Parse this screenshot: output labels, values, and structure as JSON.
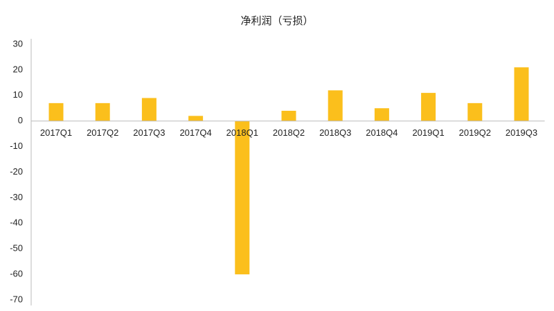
{
  "chart_data": {
    "type": "bar",
    "title": "净利润（亏损）",
    "categories": [
      "2017Q1",
      "2017Q2",
      "2017Q3",
      "2017Q4",
      "2018Q1",
      "2018Q2",
      "2018Q3",
      "2018Q4",
      "2019Q1",
      "2019Q2",
      "2019Q3"
    ],
    "values": [
      7,
      7,
      9,
      2,
      -60,
      4,
      12,
      5,
      11,
      7,
      21
    ],
    "color": "#fbbf1c",
    "ylim": [
      -70,
      30
    ],
    "yticks": [
      -70,
      -60,
      -50,
      -40,
      -30,
      -20,
      -10,
      0,
      10,
      20,
      30
    ],
    "grid": false
  }
}
